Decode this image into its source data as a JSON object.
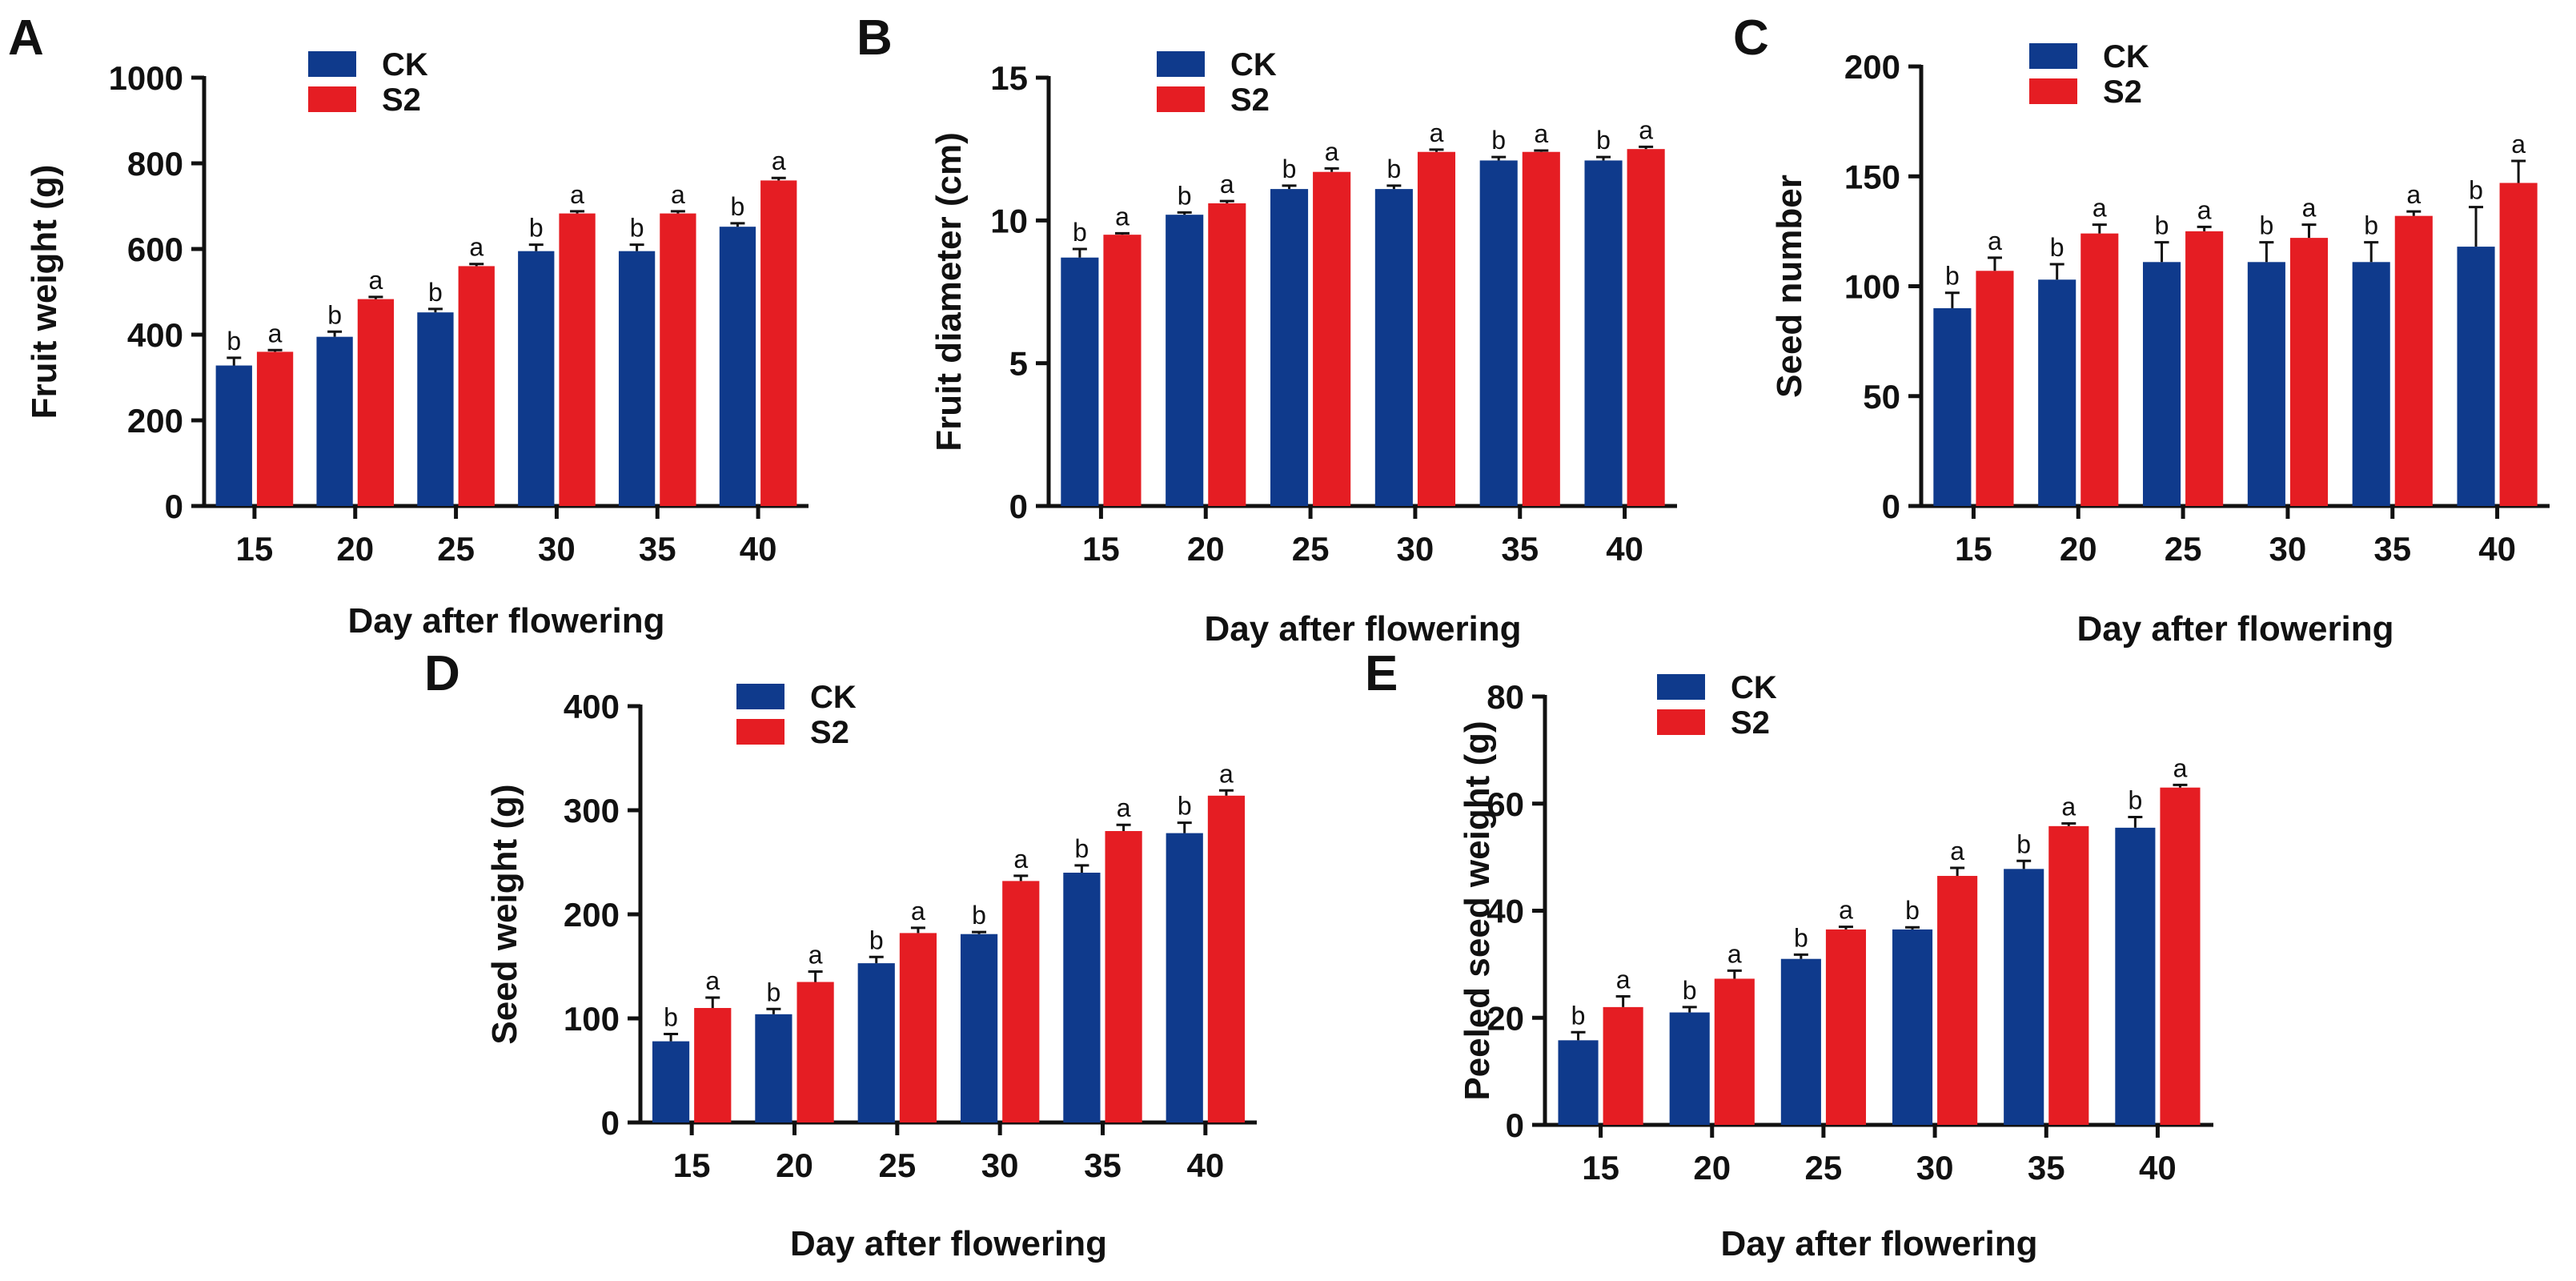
{
  "figure": {
    "colors": {
      "CK": "#0F3A8C",
      "S2": "#E51D23",
      "axis": "#111111"
    }
  },
  "chart_data": [
    {
      "type": "bar",
      "panel": "A",
      "categories": [
        "15",
        "20",
        "25",
        "30",
        "35",
        "40"
      ],
      "series": [
        {
          "name": "CK",
          "values": [
            328,
            395,
            452,
            595,
            595,
            652
          ],
          "errors": [
            18,
            12,
            8,
            15,
            15,
            8
          ],
          "sig": [
            "b",
            "b",
            "b",
            "b",
            "b",
            "b"
          ]
        },
        {
          "name": "S2",
          "values": [
            360,
            483,
            560,
            683,
            683,
            760
          ],
          "errors": [
            4,
            5,
            5,
            5,
            5,
            6
          ],
          "sig": [
            "a",
            "a",
            "a",
            "a",
            "a",
            "a"
          ]
        }
      ],
      "xlabel": "Day after flowering",
      "ylabel": "Fruit weight (g)",
      "ylim": [
        0,
        1000
      ],
      "yticks": [
        0,
        200,
        400,
        600,
        800,
        1000
      ],
      "legend_placement": "top-left"
    },
    {
      "type": "bar",
      "panel": "B",
      "categories": [
        "15",
        "20",
        "25",
        "30",
        "35",
        "40"
      ],
      "series": [
        {
          "name": "CK",
          "values": [
            8.7,
            10.2,
            11.1,
            11.1,
            12.1,
            12.1
          ],
          "errors": [
            0.3,
            0.08,
            0.12,
            0.12,
            0.12,
            0.12
          ],
          "sig": [
            "b",
            "b",
            "b",
            "b",
            "b",
            "b"
          ]
        },
        {
          "name": "S2",
          "values": [
            9.5,
            10.6,
            11.7,
            12.4,
            12.4,
            12.5
          ],
          "errors": [
            0.05,
            0.08,
            0.12,
            0.08,
            0.05,
            0.08
          ],
          "sig": [
            "a",
            "a",
            "a",
            "a",
            "a",
            "a"
          ]
        }
      ],
      "xlabel": "Day after flowering",
      "ylabel": "Fruit diameter (cm)",
      "ylim": [
        0,
        15
      ],
      "yticks": [
        0,
        5,
        10,
        15
      ],
      "legend_placement": "top-left"
    },
    {
      "type": "bar",
      "panel": "C",
      "categories": [
        "15",
        "20",
        "25",
        "30",
        "35",
        "40"
      ],
      "series": [
        {
          "name": "CK",
          "values": [
            90,
            103,
            111,
            111,
            111,
            118
          ],
          "errors": [
            7,
            7,
            9,
            9,
            9,
            18
          ],
          "sig": [
            "b",
            "b",
            "b",
            "b",
            "b",
            "b"
          ]
        },
        {
          "name": "S2",
          "values": [
            107,
            124,
            125,
            122,
            132,
            147
          ],
          "errors": [
            6,
            4,
            2,
            6,
            2,
            10
          ],
          "sig": [
            "a",
            "a",
            "a",
            "a",
            "a",
            "a"
          ]
        }
      ],
      "xlabel": "Day after flowering",
      "ylabel": "Seed number",
      "ylim": [
        0,
        200
      ],
      "yticks": [
        0,
        50,
        100,
        150,
        200
      ],
      "legend_placement": "top-left"
    },
    {
      "type": "bar",
      "panel": "D",
      "categories": [
        "15",
        "20",
        "25",
        "30",
        "35",
        "40"
      ],
      "series": [
        {
          "name": "CK",
          "values": [
            78,
            104,
            153,
            181,
            240,
            278
          ],
          "errors": [
            7,
            5,
            6,
            2,
            7,
            10
          ],
          "sig": [
            "b",
            "b",
            "b",
            "b",
            "b",
            "b"
          ]
        },
        {
          "name": "S2",
          "values": [
            110,
            135,
            182,
            232,
            280,
            314
          ],
          "errors": [
            10,
            10,
            5,
            5,
            6,
            5
          ],
          "sig": [
            "a",
            "a",
            "a",
            "a",
            "a",
            "a"
          ]
        }
      ],
      "xlabel": "Day after flowering",
      "ylabel": "Seed weight (g)",
      "ylim": [
        0,
        400
      ],
      "yticks": [
        0,
        100,
        200,
        300,
        400
      ],
      "legend_placement": "top-left"
    },
    {
      "type": "bar",
      "panel": "E",
      "categories": [
        "15",
        "20",
        "25",
        "30",
        "35",
        "40"
      ],
      "series": [
        {
          "name": "CK",
          "values": [
            15.8,
            21.0,
            31.0,
            36.5,
            47.8,
            55.5
          ],
          "errors": [
            1.5,
            1.0,
            0.8,
            0.4,
            1.5,
            2.0
          ],
          "sig": [
            "b",
            "b",
            "b",
            "b",
            "b",
            "b"
          ]
        },
        {
          "name": "S2",
          "values": [
            22.0,
            27.3,
            36.5,
            46.5,
            55.8,
            63.0
          ],
          "errors": [
            2.0,
            1.5,
            0.5,
            1.5,
            0.5,
            0.5
          ],
          "sig": [
            "a",
            "a",
            "a",
            "a",
            "a",
            "a"
          ]
        }
      ],
      "xlabel": "Day after flowering",
      "ylabel": "Peeled seed weight (g)",
      "ylim": [
        0,
        80
      ],
      "yticks": [
        0,
        20,
        40,
        60,
        80
      ],
      "legend_placement": "top-left"
    }
  ]
}
